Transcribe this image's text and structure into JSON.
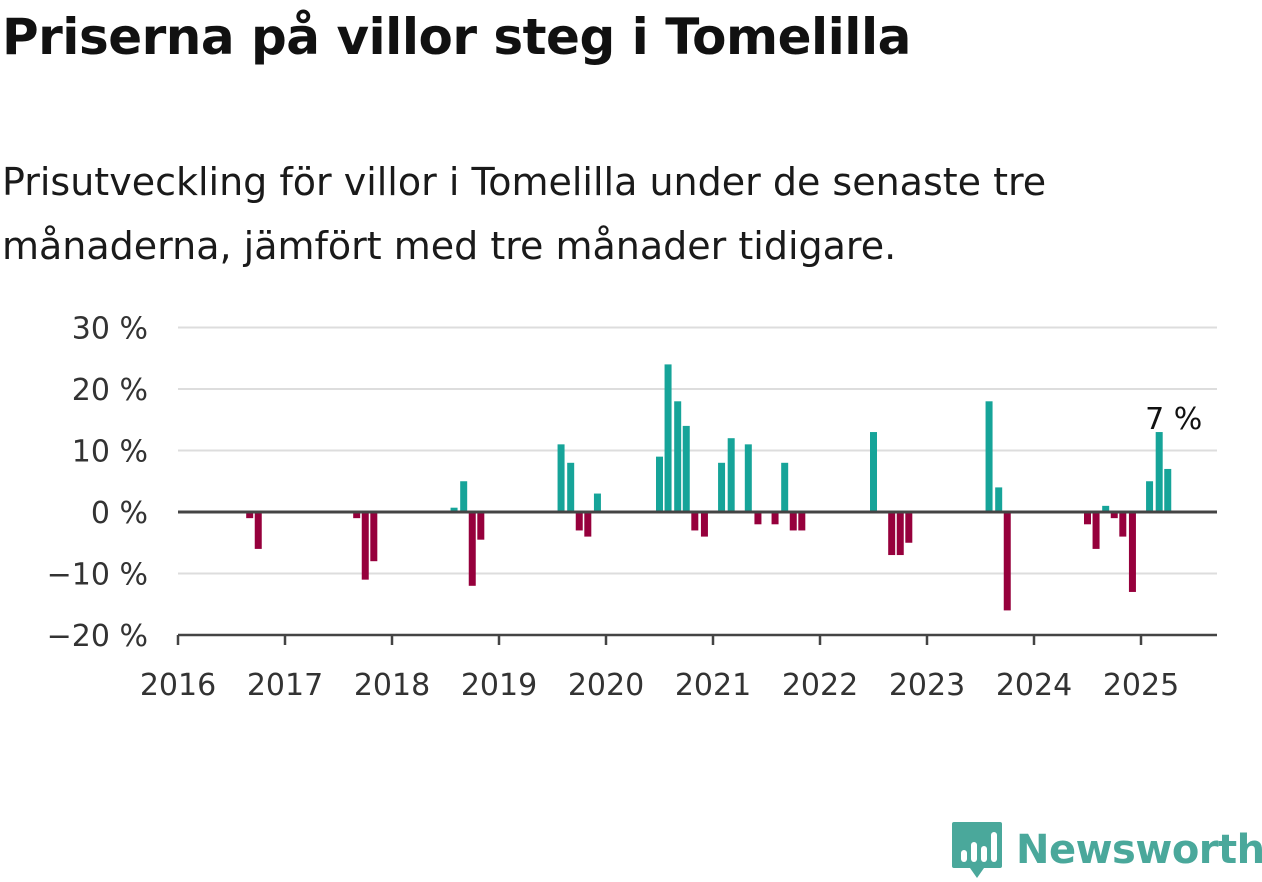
{
  "title": "Priserna på villor steg i Tomelilla",
  "subtitle": "Prisutveckling för villor i Tomelilla under de senaste tre månaderna, jämfört med tre månader tidigare.",
  "logo": {
    "text": "Newsworthy",
    "icon": "newsworthy-chart-icon"
  },
  "colors": {
    "positive": "#16a499",
    "negative": "#96003c",
    "grid": "#dddddd",
    "axis": "#444444",
    "logo": "#4aa89b"
  },
  "chart_data": {
    "type": "bar",
    "xlim": [
      2016,
      2025.7
    ],
    "ylim": [
      -20,
      30
    ],
    "y_ticks": [
      30,
      20,
      10,
      0,
      -10,
      -20
    ],
    "y_tick_labels": [
      "30 %",
      "20 %",
      "10 %",
      "0 %",
      "−10 %",
      "−20 %"
    ],
    "x_ticks": [
      2016,
      2017,
      2018,
      2019,
      2020,
      2021,
      2022,
      2023,
      2024,
      2025
    ],
    "x_tick_labels": [
      "2016",
      "2017",
      "2018",
      "2019",
      "2020",
      "2021",
      "2022",
      "2023",
      "2024",
      "2025"
    ],
    "grid": true,
    "annotation": {
      "text": "7 %",
      "x": 2025.25,
      "y": 7
    },
    "points": [
      {
        "x": 2016.67,
        "y": -1
      },
      {
        "x": 2016.75,
        "y": -6
      },
      {
        "x": 2017.67,
        "y": -1
      },
      {
        "x": 2017.75,
        "y": -11
      },
      {
        "x": 2017.83,
        "y": -8
      },
      {
        "x": 2018.58,
        "y": 0.7
      },
      {
        "x": 2018.67,
        "y": 5
      },
      {
        "x": 2018.75,
        "y": -12
      },
      {
        "x": 2018.83,
        "y": -4.5
      },
      {
        "x": 2019.58,
        "y": 11
      },
      {
        "x": 2019.67,
        "y": 8
      },
      {
        "x": 2019.75,
        "y": -3
      },
      {
        "x": 2019.83,
        "y": -4
      },
      {
        "x": 2019.92,
        "y": 3
      },
      {
        "x": 2020.5,
        "y": 9
      },
      {
        "x": 2020.58,
        "y": 24
      },
      {
        "x": 2020.67,
        "y": 18
      },
      {
        "x": 2020.75,
        "y": 14
      },
      {
        "x": 2020.83,
        "y": -3
      },
      {
        "x": 2020.92,
        "y": -4
      },
      {
        "x": 2021.08,
        "y": 8
      },
      {
        "x": 2021.17,
        "y": 12
      },
      {
        "x": 2021.33,
        "y": 11
      },
      {
        "x": 2021.42,
        "y": -2
      },
      {
        "x": 2021.58,
        "y": -2
      },
      {
        "x": 2021.67,
        "y": 8
      },
      {
        "x": 2021.75,
        "y": -3
      },
      {
        "x": 2021.83,
        "y": -3
      },
      {
        "x": 2022.5,
        "y": 13
      },
      {
        "x": 2022.67,
        "y": -7
      },
      {
        "x": 2022.75,
        "y": -7
      },
      {
        "x": 2022.83,
        "y": -5
      },
      {
        "x": 2023.58,
        "y": 18
      },
      {
        "x": 2023.67,
        "y": 4
      },
      {
        "x": 2023.75,
        "y": -16
      },
      {
        "x": 2024.5,
        "y": -2
      },
      {
        "x": 2024.58,
        "y": -6
      },
      {
        "x": 2024.67,
        "y": 1
      },
      {
        "x": 2024.75,
        "y": -1
      },
      {
        "x": 2024.83,
        "y": -4
      },
      {
        "x": 2024.92,
        "y": -13
      },
      {
        "x": 2025.08,
        "y": 5
      },
      {
        "x": 2025.17,
        "y": 13
      },
      {
        "x": 2025.25,
        "y": 7
      }
    ]
  }
}
